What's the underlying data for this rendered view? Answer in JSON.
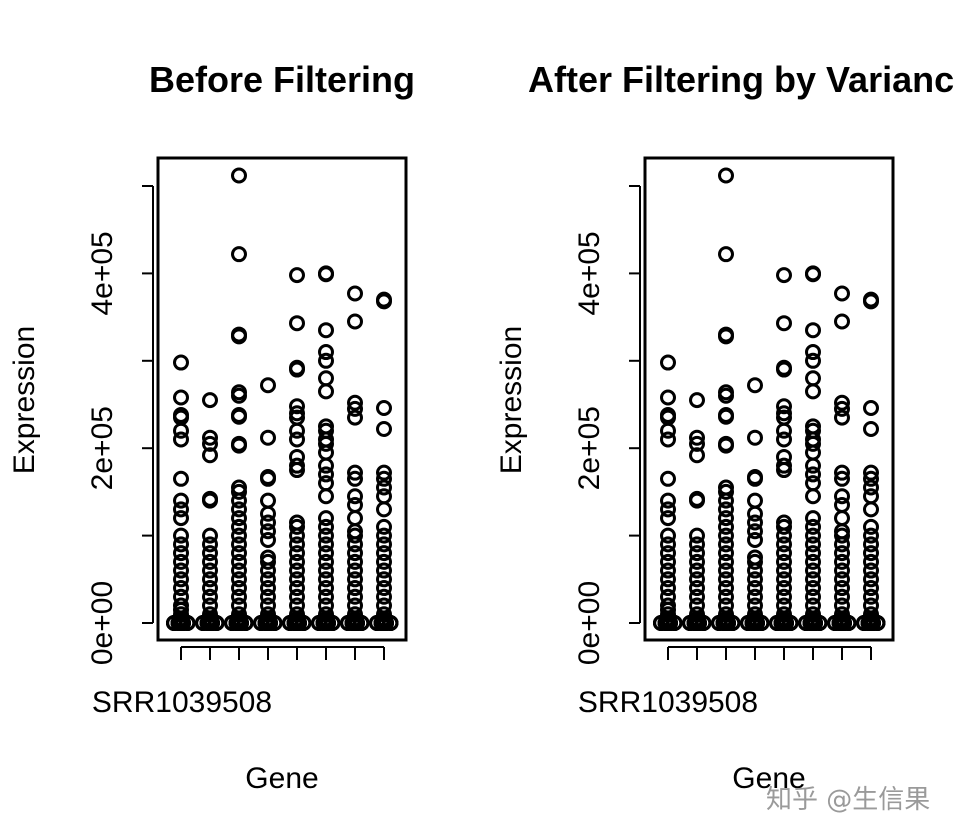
{
  "colors": {
    "foreground": "#000000",
    "background": "#ffffff",
    "watermark": "#9a9a9a"
  },
  "watermark": "知乎 @生信果",
  "chart_data": [
    {
      "type": "scatter",
      "subtype": "stripchart-per-sample",
      "title": "Before Filtering",
      "xlabel": "Gene",
      "ylabel": "Expression",
      "ylim": [
        0,
        500000
      ],
      "yticks": [
        0,
        100000,
        200000,
        300000,
        400000,
        500000
      ],
      "ytick_labels": [
        "0e+00",
        "",
        "2e+05",
        "",
        "4e+05",
        ""
      ],
      "xtick_labels": [
        "SRR1039508",
        "",
        "",
        "",
        "",
        "",
        "",
        ""
      ],
      "grid": false,
      "series": [
        {
          "category": 1,
          "values": [
            0,
            2000,
            5000,
            10000,
            15000,
            20000,
            30000,
            40000,
            50000,
            60000,
            70000,
            80000,
            90000,
            100000,
            120000,
            130000,
            140000,
            165000,
            210000,
            220000,
            235000,
            238000,
            258000,
            298000
          ]
        },
        {
          "category": 2,
          "values": [
            0,
            2000,
            5000,
            10000,
            20000,
            30000,
            40000,
            50000,
            60000,
            70000,
            80000,
            90000,
            100000,
            140000,
            142000,
            192000,
            205000,
            212000,
            255000
          ]
        },
        {
          "category": 3,
          "values": [
            0,
            2000,
            5000,
            10000,
            20000,
            30000,
            40000,
            50000,
            60000,
            70000,
            80000,
            90000,
            100000,
            110000,
            120000,
            130000,
            140000,
            150000,
            155000,
            203000,
            205000,
            236000,
            238000,
            260000,
            264000,
            328000,
            330000,
            422000,
            512000
          ]
        },
        {
          "category": 4,
          "values": [
            0,
            2000,
            5000,
            10000,
            20000,
            30000,
            40000,
            50000,
            60000,
            70000,
            75000,
            95000,
            105000,
            115000,
            125000,
            140000,
            165000,
            167000,
            212000,
            272000
          ]
        },
        {
          "category": 5,
          "values": [
            0,
            2000,
            5000,
            10000,
            20000,
            30000,
            40000,
            50000,
            60000,
            70000,
            80000,
            90000,
            100000,
            110000,
            115000,
            175000,
            180000,
            190000,
            210000,
            220000,
            235000,
            240000,
            248000,
            290000,
            292000,
            343000,
            398000
          ]
        },
        {
          "category": 6,
          "values": [
            0,
            2000,
            5000,
            10000,
            20000,
            30000,
            40000,
            50000,
            60000,
            70000,
            80000,
            90000,
            100000,
            110000,
            120000,
            145000,
            160000,
            170000,
            180000,
            195000,
            205000,
            210000,
            220000,
            225000,
            265000,
            280000,
            300000,
            310000,
            335000,
            399000,
            400000
          ]
        },
        {
          "category": 7,
          "values": [
            0,
            2000,
            5000,
            10000,
            20000,
            30000,
            40000,
            50000,
            60000,
            70000,
            80000,
            90000,
            100000,
            105000,
            120000,
            135000,
            145000,
            165000,
            172000,
            235000,
            245000,
            252000,
            345000,
            377000
          ]
        },
        {
          "category": 8,
          "values": [
            0,
            2000,
            5000,
            10000,
            20000,
            30000,
            40000,
            50000,
            60000,
            70000,
            80000,
            90000,
            100000,
            110000,
            130000,
            145000,
            155000,
            165000,
            172000,
            222000,
            246000,
            368000,
            370000
          ]
        }
      ]
    },
    {
      "type": "scatter",
      "subtype": "stripchart-per-sample",
      "title": "After Filtering by Varianc",
      "xlabel": "Gene",
      "ylabel": "Expression",
      "ylim": [
        0,
        500000
      ],
      "yticks": [
        0,
        100000,
        200000,
        300000,
        400000,
        500000
      ],
      "ytick_labels": [
        "0e+00",
        "",
        "2e+05",
        "",
        "4e+05",
        ""
      ],
      "xtick_labels": [
        "SRR1039508",
        "",
        "",
        "",
        "",
        "",
        "",
        ""
      ],
      "grid": false,
      "series": [
        {
          "category": 1,
          "values": [
            0,
            2000,
            5000,
            10000,
            15000,
            20000,
            30000,
            40000,
            50000,
            60000,
            70000,
            80000,
            90000,
            100000,
            120000,
            130000,
            140000,
            165000,
            210000,
            220000,
            235000,
            238000,
            258000,
            298000
          ]
        },
        {
          "category": 2,
          "values": [
            0,
            2000,
            5000,
            10000,
            20000,
            30000,
            40000,
            50000,
            60000,
            70000,
            80000,
            90000,
            100000,
            140000,
            142000,
            192000,
            205000,
            212000,
            255000
          ]
        },
        {
          "category": 3,
          "values": [
            0,
            2000,
            5000,
            10000,
            20000,
            30000,
            40000,
            50000,
            60000,
            70000,
            80000,
            90000,
            100000,
            110000,
            120000,
            130000,
            140000,
            150000,
            155000,
            203000,
            205000,
            236000,
            238000,
            260000,
            264000,
            328000,
            330000,
            422000,
            512000
          ]
        },
        {
          "category": 4,
          "values": [
            0,
            2000,
            5000,
            10000,
            20000,
            30000,
            40000,
            50000,
            60000,
            70000,
            75000,
            95000,
            105000,
            115000,
            125000,
            140000,
            165000,
            167000,
            212000,
            272000
          ]
        },
        {
          "category": 5,
          "values": [
            0,
            2000,
            5000,
            10000,
            20000,
            30000,
            40000,
            50000,
            60000,
            70000,
            80000,
            90000,
            100000,
            110000,
            115000,
            175000,
            180000,
            190000,
            210000,
            220000,
            235000,
            240000,
            248000,
            290000,
            292000,
            343000,
            398000
          ]
        },
        {
          "category": 6,
          "values": [
            0,
            2000,
            5000,
            10000,
            20000,
            30000,
            40000,
            50000,
            60000,
            70000,
            80000,
            90000,
            100000,
            110000,
            120000,
            145000,
            160000,
            170000,
            180000,
            195000,
            205000,
            210000,
            220000,
            225000,
            265000,
            280000,
            300000,
            310000,
            335000,
            399000,
            400000
          ]
        },
        {
          "category": 7,
          "values": [
            0,
            2000,
            5000,
            10000,
            20000,
            30000,
            40000,
            50000,
            60000,
            70000,
            80000,
            90000,
            100000,
            105000,
            120000,
            135000,
            145000,
            165000,
            172000,
            235000,
            245000,
            252000,
            345000,
            377000
          ]
        },
        {
          "category": 8,
          "values": [
            0,
            2000,
            5000,
            10000,
            20000,
            30000,
            40000,
            50000,
            60000,
            70000,
            80000,
            90000,
            100000,
            110000,
            130000,
            145000,
            155000,
            165000,
            172000,
            222000,
            246000,
            368000,
            370000
          ]
        }
      ]
    }
  ]
}
